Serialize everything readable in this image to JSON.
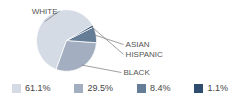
{
  "chart_data": {
    "type": "pie",
    "categories": [
      "WHITE",
      "BLACK",
      "ASIAN",
      "HISPANIC"
    ],
    "values": [
      61.1,
      29.5,
      8.4,
      1.1
    ],
    "value_labels": [
      "61.1%",
      "29.5%",
      "8.4%",
      "1.1%"
    ],
    "colors": [
      "#d5dbe4",
      "#a3afc0",
      "#667d98",
      "#2f4d6e"
    ],
    "legend": "bottom"
  }
}
